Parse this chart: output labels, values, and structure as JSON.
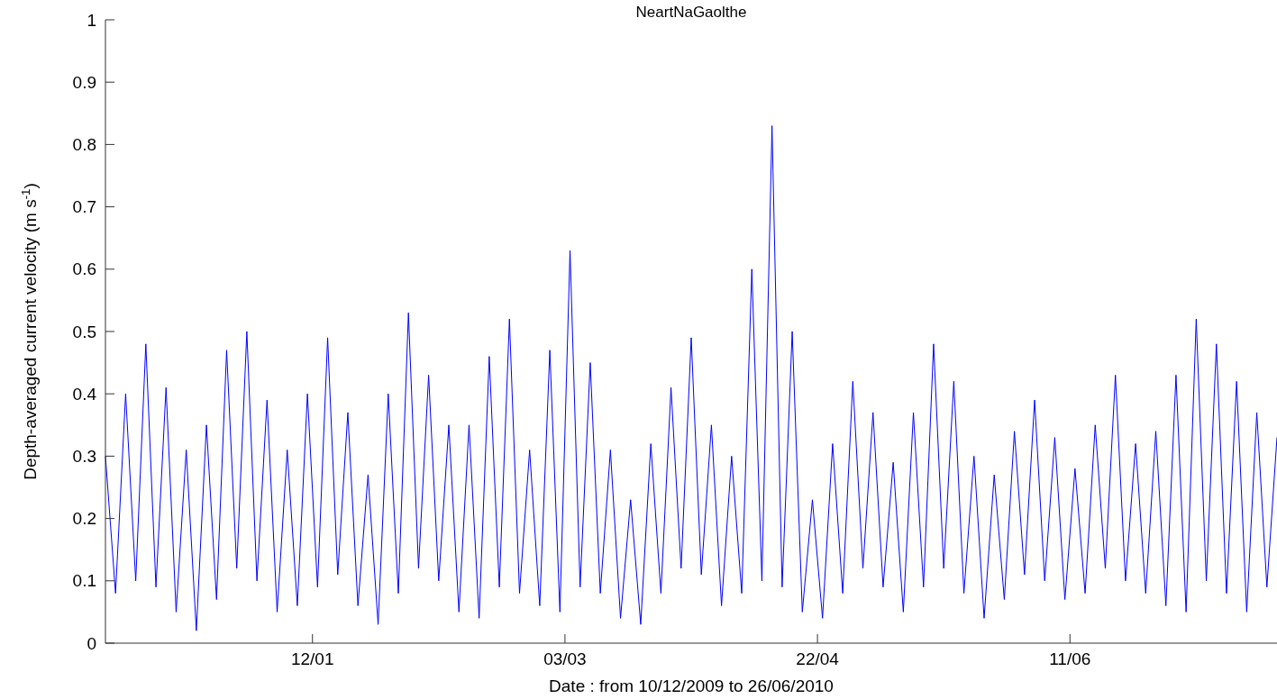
{
  "chart_data": {
    "type": "line",
    "title": "NeartNaGaolthe",
    "xlabel": "Date : from 10/12/2009 to 26/06/2010",
    "ylabel": "Depth-averaged current velocity (m s$^{-1}$)",
    "xlim": [
      "2009-12-02",
      "2010-07-22"
    ],
    "xticks": [
      {
        "value": "2010-01-12",
        "label": "12/01"
      },
      {
        "value": "2010-03-03",
        "label": "03/03"
      },
      {
        "value": "2010-04-22",
        "label": "22/04"
      },
      {
        "value": "2010-06-11",
        "label": "11/06"
      }
    ],
    "ylim": [
      0,
      1
    ],
    "yticks": [
      0,
      0.1,
      0.2,
      0.3,
      0.4,
      0.5,
      0.6,
      0.7,
      0.8,
      0.9,
      1
    ],
    "grid": false,
    "marker": "none",
    "line_style": "solid",
    "series": [
      {
        "color": "#0000ff",
        "x": [
          "2009-12-02",
          "2009-12-04",
          "2009-12-06",
          "2009-12-08",
          "2009-12-10",
          "2009-12-12",
          "2009-12-14",
          "2009-12-16",
          "2009-12-18",
          "2009-12-20",
          "2009-12-22",
          "2009-12-24",
          "2009-12-26",
          "2009-12-28",
          "2009-12-30",
          "2010-01-01",
          "2010-01-03",
          "2010-01-05",
          "2010-01-07",
          "2010-01-09",
          "2010-01-11",
          "2010-01-13",
          "2010-01-15",
          "2010-01-17",
          "2010-01-19",
          "2010-01-21",
          "2010-01-23",
          "2010-01-25",
          "2010-01-27",
          "2010-01-29",
          "2010-01-31",
          "2010-02-02",
          "2010-02-04",
          "2010-02-06",
          "2010-02-08",
          "2010-02-10",
          "2010-02-12",
          "2010-02-14",
          "2010-02-16",
          "2010-02-18",
          "2010-02-20",
          "2010-02-22",
          "2010-02-24",
          "2010-02-26",
          "2010-02-28",
          "2010-03-02",
          "2010-03-04",
          "2010-03-06",
          "2010-03-08",
          "2010-03-10",
          "2010-03-12",
          "2010-03-14",
          "2010-03-16",
          "2010-03-18",
          "2010-03-20",
          "2010-03-22",
          "2010-03-24",
          "2010-03-26",
          "2010-03-28",
          "2010-03-30",
          "2010-04-01",
          "2010-04-03",
          "2010-04-05",
          "2010-04-07",
          "2010-04-09",
          "2010-04-11",
          "2010-04-13",
          "2010-04-15",
          "2010-04-17",
          "2010-04-19",
          "2010-04-21",
          "2010-04-23",
          "2010-04-25",
          "2010-04-27",
          "2010-04-29",
          "2010-05-01",
          "2010-05-03",
          "2010-05-05",
          "2010-05-07",
          "2010-05-09",
          "2010-05-11",
          "2010-05-13",
          "2010-05-15",
          "2010-05-17",
          "2010-05-19",
          "2010-05-21",
          "2010-05-23",
          "2010-05-25",
          "2010-05-27",
          "2010-05-29",
          "2010-05-31",
          "2010-06-02",
          "2010-06-04",
          "2010-06-06",
          "2010-06-08",
          "2010-06-10",
          "2010-06-12",
          "2010-06-14",
          "2010-06-16",
          "2010-06-18",
          "2010-06-20",
          "2010-06-22",
          "2010-06-24",
          "2010-06-26",
          "2010-06-28",
          "2010-06-30",
          "2010-07-02",
          "2010-07-04",
          "2010-07-06",
          "2010-07-08",
          "2010-07-10",
          "2010-07-12",
          "2010-07-14",
          "2010-07-16",
          "2010-07-18",
          "2010-07-20",
          "2010-07-22"
        ],
        "values": [
          0.3,
          0.08,
          0.4,
          0.1,
          0.48,
          0.09,
          0.41,
          0.05,
          0.31,
          0.02,
          0.35,
          0.07,
          0.47,
          0.12,
          0.5,
          0.1,
          0.39,
          0.05,
          0.31,
          0.06,
          0.4,
          0.09,
          0.49,
          0.11,
          0.37,
          0.06,
          0.27,
          0.03,
          0.4,
          0.08,
          0.53,
          0.12,
          0.43,
          0.1,
          0.35,
          0.05,
          0.35,
          0.04,
          0.46,
          0.09,
          0.52,
          0.08,
          0.31,
          0.06,
          0.47,
          0.05,
          0.63,
          0.09,
          0.45,
          0.08,
          0.31,
          0.04,
          0.23,
          0.03,
          0.32,
          0.08,
          0.41,
          0.12,
          0.49,
          0.11,
          0.35,
          0.06,
          0.3,
          0.08,
          0.6,
          0.1,
          0.83,
          0.09,
          0.5,
          0.05,
          0.23,
          0.04,
          0.32,
          0.08,
          0.42,
          0.12,
          0.37,
          0.09,
          0.29,
          0.05,
          0.37,
          0.09,
          0.48,
          0.12,
          0.42,
          0.08,
          0.3,
          0.04,
          0.27,
          0.07,
          0.34,
          0.11,
          0.39,
          0.1,
          0.33,
          0.07,
          0.28,
          0.08,
          0.35,
          0.12,
          0.43,
          0.1,
          0.32,
          0.08,
          0.34,
          0.06,
          0.43,
          0.05,
          0.52,
          0.1,
          0.48,
          0.08,
          0.42,
          0.05,
          0.37,
          0.09,
          0.33
        ]
      }
    ]
  }
}
